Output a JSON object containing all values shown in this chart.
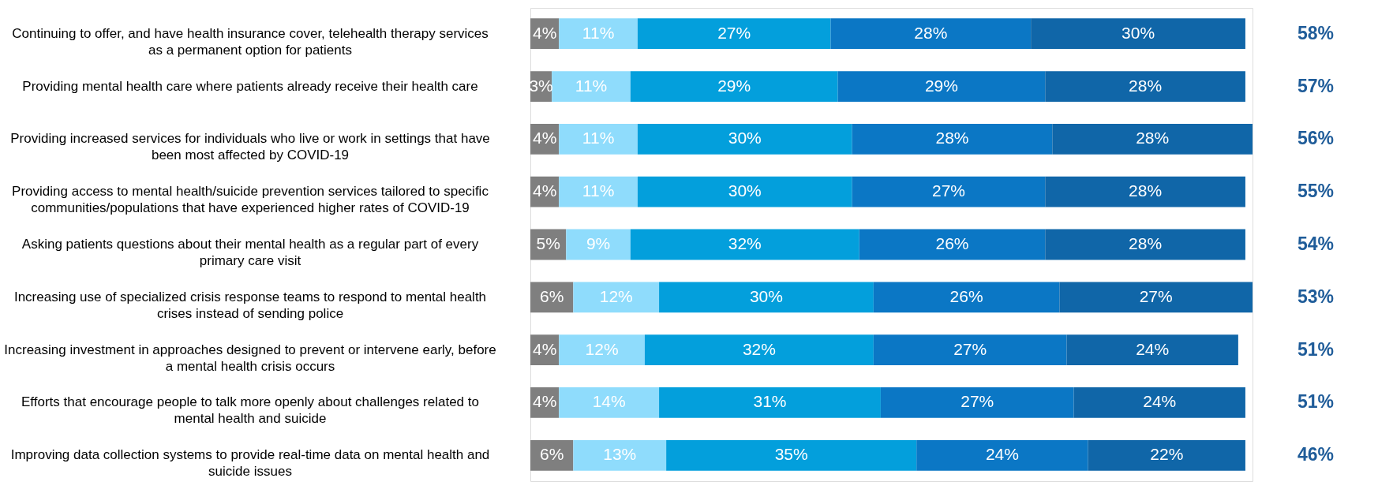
{
  "chart_data": {
    "type": "bar",
    "orientation": "horizontal",
    "stacked": true,
    "categories": [
      "Continuing to offer, and have health insurance cover, telehealth therapy services as a permanent option for patients",
      "Providing mental health care where patients already receive their health care",
      "Providing increased services for individuals who live or work in settings that have been most affected by COVID-19",
      "Providing access to mental health/suicide prevention services tailored to specific communities/populations that have experienced higher rates of COVID-19",
      "Asking patients questions about their mental health as a regular part of every primary care visit",
      "Increasing use of specialized crisis response teams to respond to mental health crises instead of sending police",
      "Increasing investment in approaches designed to prevent or intervene early, before a mental health crisis occurs",
      "Efforts that encourage people to talk more openly about challenges related to mental health and suicide",
      "Improving data collection systems to provide real-time data on mental health and suicide issues"
    ],
    "series": [
      {
        "color": "#7f7f7f",
        "values": [
          4,
          3,
          4,
          4,
          5,
          6,
          4,
          4,
          6
        ],
        "value_labels": [
          "4%",
          "3%",
          "4%",
          "4%",
          "5%",
          "6%",
          "4%",
          "4%",
          "6%"
        ]
      },
      {
        "color": "#8fdcfc",
        "values": [
          11,
          11,
          11,
          11,
          9,
          12,
          12,
          14,
          13
        ],
        "value_labels": [
          "11%",
          "11%",
          "11%",
          "11%",
          "9%",
          "12%",
          "12%",
          "14%",
          "13%"
        ]
      },
      {
        "color": "#039fdc",
        "values": [
          27,
          29,
          30,
          30,
          32,
          30,
          32,
          31,
          35
        ],
        "value_labels": [
          "27%",
          "29%",
          "30%",
          "30%",
          "32%",
          "30%",
          "32%",
          "31%",
          "35%"
        ]
      },
      {
        "color": "#0b77c5",
        "values": [
          28,
          29,
          28,
          27,
          26,
          26,
          27,
          27,
          24
        ],
        "value_labels": [
          "28%",
          "29%",
          "28%",
          "27%",
          "26%",
          "26%",
          "27%",
          "27%",
          "24%"
        ]
      },
      {
        "color": "#1066a8",
        "values": [
          30,
          28,
          28,
          28,
          28,
          27,
          24,
          24,
          22
        ],
        "value_labels": [
          "30%",
          "28%",
          "28%",
          "28%",
          "28%",
          "27%",
          "24%",
          "24%",
          "22%"
        ]
      }
    ],
    "annotations": [
      "58%",
      "57%",
      "56%",
      "55%",
      "54%",
      "53%",
      "51%",
      "51%",
      "46%"
    ]
  }
}
